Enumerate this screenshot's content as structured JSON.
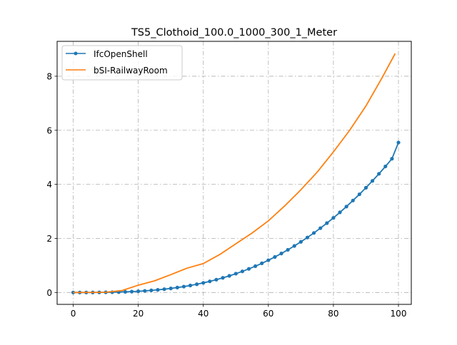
{
  "chart_data": {
    "type": "line",
    "title": "TS5_Clothoid_100.0_1000_300_1_Meter",
    "xlabel": "",
    "ylabel": "",
    "xlim": [
      -4.95,
      103.95
    ],
    "ylim": [
      -0.44,
      9.29
    ],
    "grid": true,
    "grid_style": "dash-dot",
    "legend_position": "upper left",
    "x_ticks": [
      0,
      20,
      40,
      60,
      80,
      100
    ],
    "x_tick_labels": [
      "0",
      "20",
      "40",
      "60",
      "80",
      "100"
    ],
    "y_ticks": [
      0,
      2,
      4,
      6,
      8
    ],
    "y_tick_labels": [
      "0",
      "2",
      "4",
      "6",
      "8"
    ],
    "series": [
      {
        "name": "IfcOpenShell",
        "color": "#1f77b4",
        "marker": "circle",
        "x": [
          0,
          2,
          4,
          6,
          8,
          10,
          12,
          14,
          16,
          18,
          20,
          22,
          24,
          26,
          28,
          30,
          32,
          34,
          36,
          38,
          40,
          42,
          44,
          46,
          48,
          50,
          52,
          54,
          56,
          58,
          60,
          62,
          64,
          66,
          68,
          70,
          72,
          74,
          76,
          78,
          80,
          82,
          84,
          86,
          88,
          90,
          92,
          94,
          96,
          98,
          100
        ],
        "y": [
          0.0,
          0.0,
          0.0,
          0.001,
          0.003,
          0.006,
          0.01,
          0.015,
          0.023,
          0.032,
          0.044,
          0.059,
          0.077,
          0.098,
          0.122,
          0.15,
          0.182,
          0.218,
          0.259,
          0.305,
          0.356,
          0.412,
          0.474,
          0.542,
          0.615,
          0.695,
          0.781,
          0.874,
          0.973,
          1.079,
          1.193,
          1.314,
          1.442,
          1.578,
          1.722,
          1.874,
          2.034,
          2.202,
          2.38,
          2.566,
          2.76,
          2.964,
          3.178,
          3.401,
          3.633,
          3.875,
          4.128,
          4.39,
          4.663,
          4.947,
          5.547
        ]
      },
      {
        "name": "bSI-RailwayRoom",
        "color": "#ff7f0e",
        "marker": "none",
        "x": [
          0,
          5,
          10,
          15,
          20,
          25,
          30,
          35,
          40,
          45,
          50,
          55,
          60,
          65,
          70,
          75,
          80,
          85,
          90,
          95,
          99
        ],
        "y": [
          0.0,
          0.001,
          0.009,
          0.07,
          0.27,
          0.43,
          0.66,
          0.9,
          1.07,
          1.4,
          1.8,
          2.2,
          2.65,
          3.2,
          3.8,
          4.45,
          5.2,
          6.0,
          6.9,
          7.95,
          8.84
        ]
      }
    ]
  }
}
